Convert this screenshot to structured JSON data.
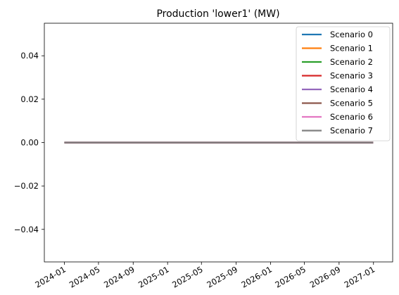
{
  "chart_data": {
    "type": "line",
    "title": "Production 'lower1' (MW)",
    "xlabel": "",
    "ylabel": "",
    "x_type": "date",
    "x": [
      "2024-01-01",
      "2026-12-31"
    ],
    "xlim": [
      "2023-10-22",
      "2027-03-10"
    ],
    "ylim": [
      -0.055,
      0.055
    ],
    "x_ticks": [
      "2024-01",
      "2024-05",
      "2024-09",
      "2025-01",
      "2025-05",
      "2025-09",
      "2026-01",
      "2026-05",
      "2026-09",
      "2027-01"
    ],
    "y_ticks": [
      0.04,
      0.02,
      0.0,
      -0.02,
      -0.04
    ],
    "y_tick_labels": [
      "0.04",
      "0.02",
      "0.00",
      "−0.02",
      "−0.04"
    ],
    "grid": false,
    "legend_position": "top-right",
    "series": [
      {
        "name": "Scenario 0",
        "color": "#1f77b4",
        "values": [
          0,
          0
        ]
      },
      {
        "name": "Scenario 1",
        "color": "#ff7f0e",
        "values": [
          0,
          0
        ]
      },
      {
        "name": "Scenario 2",
        "color": "#2ca02c",
        "values": [
          0,
          0
        ]
      },
      {
        "name": "Scenario 3",
        "color": "#d62728",
        "values": [
          0,
          0
        ]
      },
      {
        "name": "Scenario 4",
        "color": "#9467bd",
        "values": [
          0,
          0
        ]
      },
      {
        "name": "Scenario 5",
        "color": "#8c564b",
        "values": [
          0,
          0
        ]
      },
      {
        "name": "Scenario 6",
        "color": "#e377c2",
        "values": [
          0,
          0
        ]
      },
      {
        "name": "Scenario 7",
        "color": "#7f7f7f",
        "values": [
          0,
          0
        ]
      }
    ]
  }
}
